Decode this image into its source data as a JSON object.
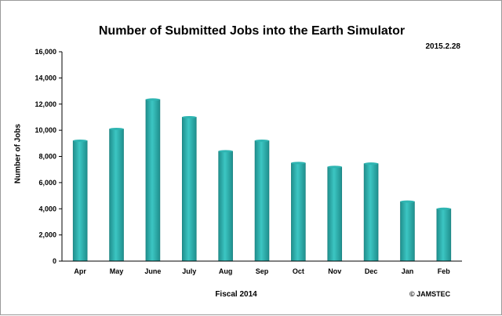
{
  "chart_data": {
    "type": "bar",
    "title": "Number of Submitted Jobs into the Earth Simulator",
    "date": "2015.2.28",
    "xlabel": "Fiscal 2014",
    "ylabel": "Number of Jobs",
    "copyright": "© JAMSTEC",
    "categories": [
      "Apr",
      "May",
      "June",
      "July",
      "Aug",
      "Sep",
      "Oct",
      "Nov",
      "Dec",
      "Jan",
      "Feb"
    ],
    "values": [
      9200,
      10100,
      12350,
      11000,
      8400,
      9200,
      7500,
      7200,
      7450,
      4550,
      4000
    ],
    "ylim": [
      0,
      16000
    ],
    "yticks": [
      0,
      2000,
      4000,
      6000,
      8000,
      10000,
      12000,
      14000,
      16000
    ],
    "ytick_labels": [
      "0",
      "2,000",
      "4,000",
      "6,000",
      "8,000",
      "10,000",
      "12,000",
      "14,000",
      "16,000"
    ],
    "grid": false,
    "legend": "none",
    "bar_color": "#2fb5b2"
  }
}
